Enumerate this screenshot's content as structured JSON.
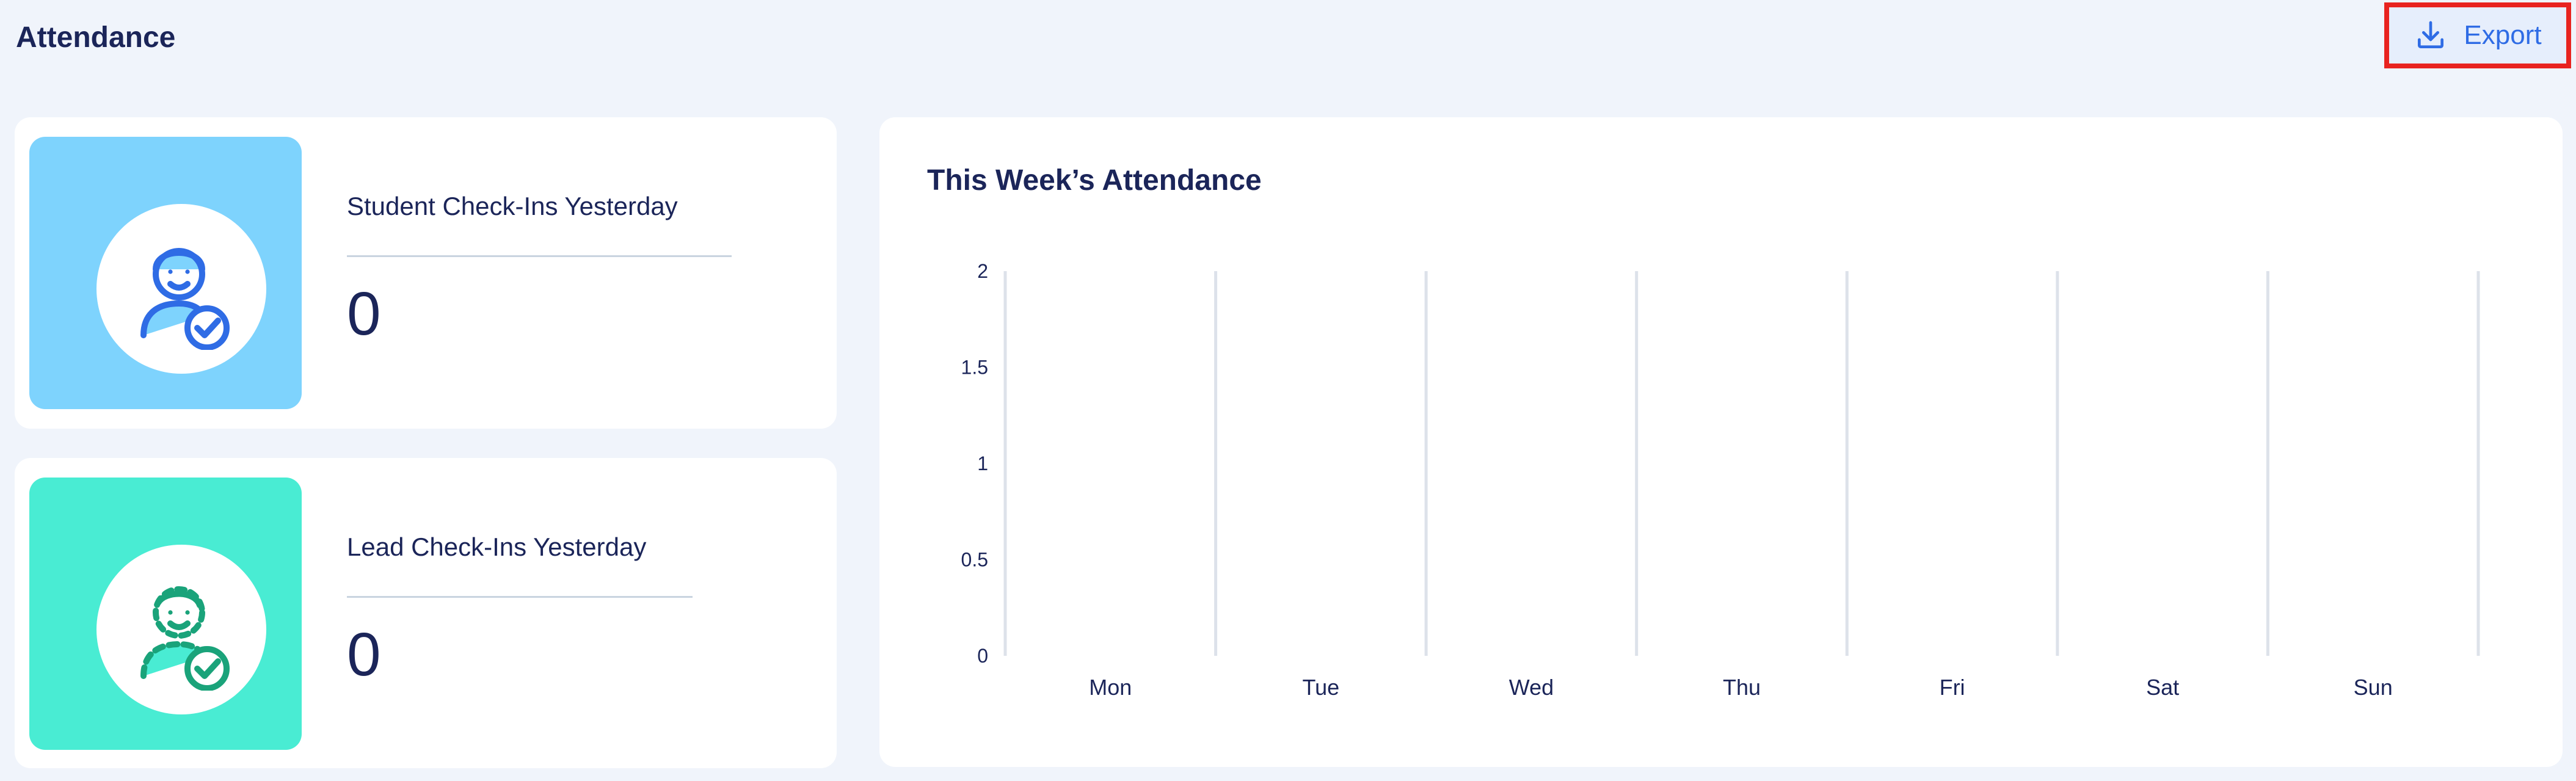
{
  "header": {
    "title": "Attendance",
    "export_label": "Export",
    "export_icon": "download-icon"
  },
  "cards": {
    "student": {
      "label": "Student Check-Ins Yesterday",
      "value": "0",
      "icon": "student-check-icon",
      "color": "#7ed3fd"
    },
    "lead": {
      "label": "Lead Check-Ins Yesterday",
      "value": "0",
      "icon": "lead-check-icon",
      "color": "#49ecd3"
    }
  },
  "chart": {
    "title": "This Week’s Attendance"
  },
  "chart_data": {
    "type": "bar",
    "title": "This Week’s Attendance",
    "categories": [
      "Mon",
      "Tue",
      "Wed",
      "Thu",
      "Fri",
      "Sat",
      "Sun"
    ],
    "values": [
      0,
      0,
      0,
      0,
      0,
      0,
      0
    ],
    "yticks": [
      "0",
      "0.5",
      "1",
      "1.5",
      "2"
    ],
    "ylim": [
      0,
      2
    ],
    "xlabel": "",
    "ylabel": "",
    "grid": "vertical",
    "legend": "none"
  },
  "colors": {
    "accent": "#2f6ce5",
    "highlight_border": "#e8231f",
    "background": "#f0f4fb",
    "text": "#1b2559"
  }
}
